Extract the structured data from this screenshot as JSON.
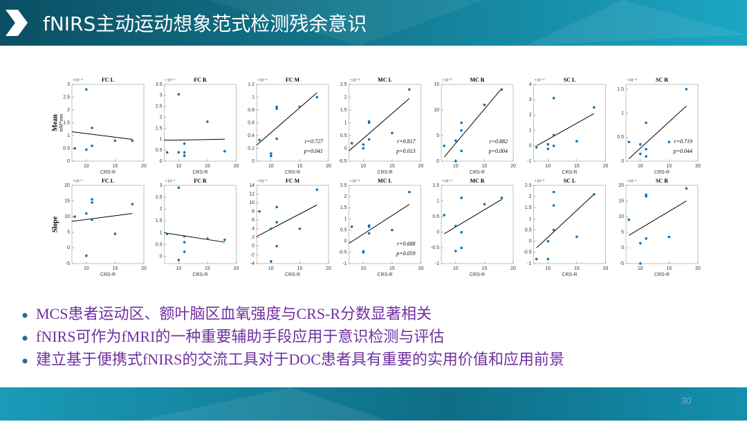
{
  "header": {
    "title": "fNIRS主动运动想象范式检测残余意识"
  },
  "bullets": [
    "MCS患者运动区、额叶脑区血氧强度与CRS-R分数显著相关",
    "fNIRS可作为fMRI的一种重要辅助手段应用于意识检测与评估",
    "建立基于便携式fNIRS的交流工具对于DOC患者具有重要的实用价值和应用前景"
  ],
  "page_number": "30",
  "chart_data": [
    {
      "type": "scatter",
      "title": "FC L",
      "exponent": "×10⁻⁴",
      "ylabel": "Mean",
      "yunit": "mM*mm",
      "xlabel": "CRS-R",
      "color": "#0072bd",
      "x": [
        8,
        10,
        10,
        11,
        11,
        15,
        18
      ],
      "values": [
        0.5,
        2.8,
        0.45,
        1.3,
        0.6,
        0.8,
        0.8
      ],
      "fit_line": {
        "x": [
          7.5,
          18
        ],
        "values": [
          1.15,
          0.85
        ]
      },
      "xlim": [
        7.5,
        20
      ],
      "ylim": [
        0,
        3
      ],
      "xticks": [
        10,
        15,
        20
      ],
      "yticks": [
        0,
        0.5,
        1,
        1.5,
        2,
        2.5,
        3
      ]
    },
    {
      "type": "scatter",
      "title": "FC R",
      "exponent": "×10⁻⁶",
      "xlabel": "CRS-R",
      "color": "#0072bd",
      "x": [
        8,
        10,
        10,
        11,
        11,
        11,
        15,
        18
      ],
      "values": [
        0.4,
        3.05,
        0.4,
        0.8,
        0.4,
        0.25,
        1.8,
        0.45
      ],
      "fit_line": {
        "x": [
          7.5,
          18
        ],
        "values": [
          0.95,
          1.0
        ]
      },
      "xlim": [
        7.5,
        20
      ],
      "ylim": [
        0,
        3.5
      ],
      "xticks": [
        10,
        15,
        20
      ],
      "yticks": [
        0,
        0.5,
        1,
        1.5,
        2,
        2.5,
        3,
        3.5
      ]
    },
    {
      "type": "scatter",
      "title": "FC M",
      "exponent": "×10⁻⁴",
      "xlabel": "CRS-R",
      "color": "#0072bd",
      "x": [
        8,
        10,
        10,
        11,
        11,
        11,
        15,
        18
      ],
      "values": [
        0.33,
        0.12,
        0.08,
        0.85,
        0.82,
        0.35,
        0.85,
        1.0
      ],
      "fit_line": {
        "x": [
          7.5,
          18
        ],
        "values": [
          0.25,
          1.07
        ]
      },
      "annotations": [
        "r=0.727",
        "p=0.041"
      ],
      "xlim": [
        7.5,
        20
      ],
      "ylim": [
        0,
        1.2
      ],
      "xticks": [
        10,
        15,
        20
      ],
      "yticks": [
        0,
        0.2,
        0.4,
        0.6,
        0.8,
        1,
        1.2
      ]
    },
    {
      "type": "scatter",
      "title": "MC L",
      "exponent": "×10⁻⁴",
      "xlabel": "CRS-R",
      "color": "#0072bd",
      "x": [
        8,
        10,
        10,
        11,
        11,
        11,
        15,
        18
      ],
      "values": [
        0.2,
        0.0,
        0.15,
        1.05,
        1.0,
        0.35,
        0.6,
        2.3
      ],
      "fit_line": {
        "x": [
          7.5,
          18
        ],
        "values": [
          -0.1,
          1.95
        ]
      },
      "annotations": [
        "r=0.817",
        "p=0.013"
      ],
      "xlim": [
        7.5,
        20
      ],
      "ylim": [
        -0.5,
        2.5
      ],
      "xticks": [
        10,
        15,
        20
      ],
      "yticks": [
        -0.5,
        0,
        0.5,
        1,
        1.5,
        2,
        2.5
      ]
    },
    {
      "type": "scatter",
      "title": "MC R",
      "exponent": "×10⁻⁵",
      "xlabel": "CRS-R",
      "color": "#0072bd",
      "x": [
        8,
        10,
        10,
        11,
        11,
        11,
        15,
        18
      ],
      "values": [
        3,
        4,
        0,
        7.5,
        6,
        2,
        11,
        14
      ],
      "fit_line": {
        "x": [
          8,
          18
        ],
        "values": [
          0.8,
          14.2
        ]
      },
      "annotations": [
        "r=0.882",
        "p=0.004"
      ],
      "xlim": [
        7.5,
        20
      ],
      "ylim": [
        0,
        15
      ],
      "xticks": [
        10,
        15,
        20
      ],
      "yticks": [
        0,
        5,
        10,
        15
      ]
    },
    {
      "type": "scatter",
      "title": "SC L",
      "exponent": "×10⁻⁴",
      "xlabel": "CRS-R",
      "color": "#0072bd",
      "x": [
        8,
        10,
        10,
        11,
        11,
        11,
        15,
        18
      ],
      "values": [
        -0.1,
        0.1,
        -0.2,
        3.1,
        0.7,
        0,
        0.3,
        2.5
      ],
      "fit_line": {
        "x": [
          8,
          18
        ],
        "values": [
          0,
          2.1
        ]
      },
      "xlim": [
        7.5,
        20
      ],
      "ylim": [
        -1,
        4
      ],
      "xticks": [
        10,
        15,
        20
      ],
      "yticks": [
        -1,
        0,
        1,
        2,
        3,
        4
      ]
    },
    {
      "type": "scatter",
      "title": "SC R",
      "exponent": "×10⁻⁴",
      "xlabel": "CRS-R",
      "color": "#0072bd",
      "x": [
        8,
        10,
        10,
        11,
        11,
        11,
        15,
        18
      ],
      "values": [
        0.4,
        0.35,
        0.15,
        0.8,
        0.25,
        0.1,
        0.4,
        1.5
      ],
      "fit_line": {
        "x": [
          8,
          18
        ],
        "values": [
          0.05,
          1.15
        ]
      },
      "annotations": [
        "r=0.719",
        "p=0.044"
      ],
      "xlim": [
        7.5,
        20
      ],
      "ylim": [
        0,
        1.6
      ],
      "xticks": [
        10,
        15,
        20
      ],
      "yticks": [
        0,
        0.5,
        1,
        1.5
      ]
    },
    {
      "type": "scatter",
      "title": "FC L",
      "exponent": "×10⁻⁶",
      "ylabel": "Slope",
      "xlabel": "CRS-R",
      "color": "#0072bd",
      "x": [
        8,
        10,
        10,
        11,
        11,
        11,
        15,
        18
      ],
      "values": [
        10,
        -2.5,
        11,
        15.5,
        14.5,
        9,
        4.5,
        14
      ],
      "fit_line": {
        "x": [
          7.5,
          18
        ],
        "values": [
          8.5,
          11
        ]
      },
      "xlim": [
        7.5,
        20
      ],
      "ylim": [
        -5,
        20
      ],
      "xticks": [
        10,
        15,
        20
      ],
      "yticks": [
        -5,
        0,
        5,
        10,
        15,
        20
      ]
    },
    {
      "type": "scatter",
      "title": "FC R",
      "exponent": "×10⁻⁵",
      "xlabel": "CRS-R",
      "color": "#0072bd",
      "x": [
        8,
        10,
        10,
        11,
        11,
        11,
        15,
        18
      ],
      "values": [
        0.95,
        2.9,
        -0.15,
        0.85,
        0.6,
        0.2,
        0.75,
        0.7
      ],
      "fit_line": {
        "x": [
          7.5,
          18
        ],
        "values": [
          1.0,
          0.6
        ]
      },
      "xlim": [
        7.5,
        20
      ],
      "ylim": [
        -0.3,
        3
      ],
      "xticks": [
        10,
        15,
        20
      ],
      "yticks": [
        0,
        0.5,
        1,
        1.5,
        2,
        2.5,
        3
      ]
    },
    {
      "type": "scatter",
      "title": "FC M",
      "exponent": "×10⁻⁶",
      "xlabel": "CRS-R",
      "color": "#0072bd",
      "x": [
        8,
        10,
        10,
        11,
        11,
        11,
        15,
        18
      ],
      "values": [
        8,
        -3.5,
        4,
        9,
        5.5,
        0,
        4,
        13
      ],
      "fit_line": {
        "x": [
          7.5,
          18
        ],
        "values": [
          2.2,
          9.5
        ]
      },
      "xlim": [
        7.5,
        20
      ],
      "ylim": [
        -4,
        14
      ],
      "xticks": [
        10,
        15,
        20
      ],
      "yticks": [
        -4,
        -2,
        0,
        2,
        4,
        6,
        8,
        10,
        12,
        14
      ]
    },
    {
      "type": "scatter",
      "title": "MC L",
      "exponent": "×10⁻⁵",
      "xlabel": "CRS-R",
      "color": "#0072bd",
      "x": [
        8,
        10,
        10,
        11,
        11,
        11,
        15,
        18
      ],
      "values": [
        0.65,
        -0.5,
        -0.45,
        0.7,
        0.65,
        0.35,
        0.5,
        2.2
      ],
      "fit_line": {
        "x": [
          7.5,
          18
        ],
        "values": [
          -0.1,
          1.65
        ]
      },
      "annotations": [
        "r=0.688",
        "p=0.059"
      ],
      "xlim": [
        7.5,
        20
      ],
      "ylim": [
        -1,
        2.5
      ],
      "xticks": [
        10,
        15,
        20
      ],
      "yticks": [
        -1,
        -0.5,
        0,
        0.5,
        1,
        1.5,
        2,
        2.5
      ]
    },
    {
      "type": "scatter",
      "title": "MC R",
      "exponent": "×10⁻⁵",
      "xlabel": "CRS-R",
      "color": "#0072bd",
      "x": [
        8,
        10,
        10,
        11,
        11,
        11,
        15,
        18
      ],
      "values": [
        0.55,
        -0.6,
        0.2,
        1.1,
        0,
        -0.5,
        0.9,
        1.1
      ],
      "fit_line": {
        "x": [
          8,
          18
        ],
        "values": [
          -0.05,
          1.05
        ]
      },
      "xlim": [
        7.5,
        20
      ],
      "ylim": [
        -1,
        1.5
      ],
      "xticks": [
        10,
        15,
        20
      ],
      "yticks": [
        -1,
        -0.5,
        0,
        0.5,
        1,
        1.5
      ]
    },
    {
      "type": "scatter",
      "title": "SC L",
      "exponent": "×10⁻⁵",
      "xlabel": "CRS-R",
      "color": "#0072bd",
      "x": [
        8,
        10,
        10,
        11,
        11,
        11,
        15,
        18
      ],
      "values": [
        -0.8,
        -0.8,
        0.0,
        2.2,
        1.6,
        0.5,
        0.2,
        2.1
      ],
      "fit_line": {
        "x": [
          8,
          18
        ],
        "values": [
          -0.3,
          2.1
        ]
      },
      "xlim": [
        7.5,
        20
      ],
      "ylim": [
        -1,
        2.5
      ],
      "xticks": [
        10,
        15,
        20
      ],
      "yticks": [
        -1,
        -0.5,
        0,
        0.5,
        1,
        1.5,
        2,
        2.5
      ]
    },
    {
      "type": "scatter",
      "title": "SC R",
      "exponent": "×10⁻⁶",
      "xlabel": "CRS-R",
      "color": "#0072bd",
      "x": [
        8,
        10,
        10,
        11,
        11,
        11,
        15,
        18
      ],
      "values": [
        9,
        1.5,
        -5,
        17,
        16.5,
        3,
        3.5,
        19
      ],
      "fit_line": {
        "x": [
          8,
          18
        ],
        "values": [
          4,
          15
        ]
      },
      "xlim": [
        7.5,
        20
      ],
      "ylim": [
        -5,
        20
      ],
      "xticks": [
        10,
        15,
        20
      ],
      "yticks": [
        -5,
        0,
        5,
        10,
        15,
        20
      ]
    }
  ]
}
